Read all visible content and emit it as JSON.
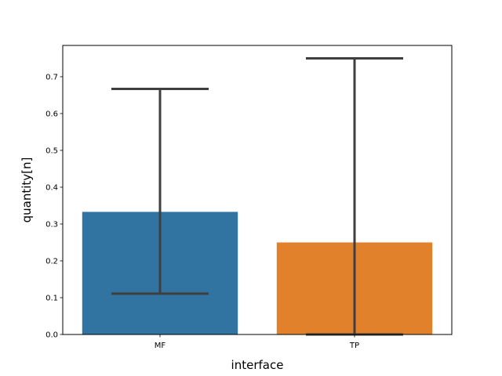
{
  "chart_data": {
    "type": "bar",
    "categories": [
      "MF",
      "TP"
    ],
    "values": [
      0.333,
      0.25
    ],
    "error_bars": [
      {
        "low": 0.111,
        "high": 0.667
      },
      {
        "low": 0.0,
        "high": 0.75
      }
    ],
    "colors": [
      "#3274a1",
      "#e1812c"
    ],
    "error_bar_color": "#3f3f3f",
    "xlabel": "interface",
    "ylabel": "quantity[n]",
    "ylim": [
      0,
      0.785
    ],
    "yticks": [
      0.0,
      0.1,
      0.2,
      0.3,
      0.4,
      0.5,
      0.6,
      0.7
    ],
    "ytick_labels": [
      "0.0",
      "0.1",
      "0.2",
      "0.3",
      "0.4",
      "0.5",
      "0.6",
      "0.7"
    ],
    "grid": false
  }
}
